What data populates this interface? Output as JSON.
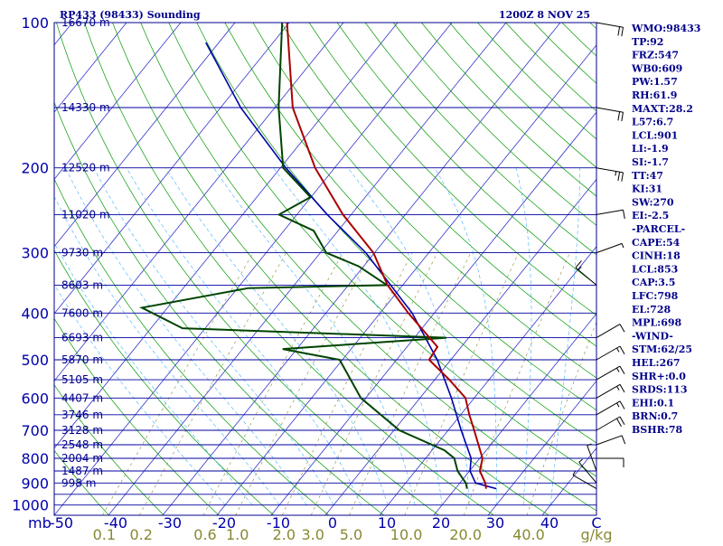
{
  "chart_data": {
    "type": "skew-t sounding",
    "title_left": "RP433 (98433) Sounding",
    "title_right": "1200Z  8 NOV 25",
    "pressure_axis": {
      "unit_label": "mb",
      "ticks": [
        100,
        200,
        300,
        400,
        500,
        600,
        700,
        800,
        900,
        1000
      ],
      "range": [
        100,
        1050
      ]
    },
    "temperature_axis": {
      "unit_label": "C",
      "ticks": [
        -50,
        -40,
        -30,
        -20,
        -10,
        0,
        10,
        20,
        30,
        40
      ],
      "range": [
        -50,
        50
      ]
    },
    "mixing_ratio_axis": {
      "unit_label": "g/kg",
      "ticks": [
        {
          "label": "0.1",
          "value": 0.1
        },
        {
          "label": "0.2",
          "value": 0.2
        },
        {
          "label": "0.6",
          "value": 0.6
        },
        {
          "label": "1.0",
          "value": 1.0
        },
        {
          "label": "2.0",
          "value": 2.0
        },
        {
          "label": "3.0",
          "value": 3.0
        },
        {
          "label": "5.0",
          "value": 5.0
        },
        {
          "label": "10.0",
          "value": 10.0
        },
        {
          "label": "20.0",
          "value": 20.0
        },
        {
          "label": "40.0",
          "value": 40.0
        }
      ]
    },
    "height_labels": [
      {
        "p": 100,
        "label": "16670 m"
      },
      {
        "p": 150,
        "label": "14330 m"
      },
      {
        "p": 200,
        "label": "12520 m"
      },
      {
        "p": 250,
        "label": "11020 m"
      },
      {
        "p": 300,
        "label": "9730 m"
      },
      {
        "p": 350,
        "label": "8603 m"
      },
      {
        "p": 400,
        "label": "7600 m"
      },
      {
        "p": 450,
        "label": "6693 m"
      },
      {
        "p": 500,
        "label": "5870 m"
      },
      {
        "p": 550,
        "label": "5105 m"
      },
      {
        "p": 600,
        "label": "4407 m"
      },
      {
        "p": 650,
        "label": "3746 m"
      },
      {
        "p": 700,
        "label": "3128 m"
      },
      {
        "p": 750,
        "label": "2548 m"
      },
      {
        "p": 800,
        "label": "2004 m"
      },
      {
        "p": 850,
        "label": "1487 m"
      },
      {
        "p": 900,
        "label": "998 m"
      }
    ],
    "isobars_extra": [
      950,
      1050
    ],
    "temperature_profile": [
      {
        "p": 925,
        "t": 25.7
      },
      {
        "p": 900,
        "t": 24.7
      },
      {
        "p": 850,
        "t": 21.9
      },
      {
        "p": 800,
        "t": 20.5
      },
      {
        "p": 700,
        "t": 14.8
      },
      {
        "p": 650,
        "t": 11.6
      },
      {
        "p": 600,
        "t": 8.4
      },
      {
        "p": 550,
        "t": 2.7
      },
      {
        "p": 500,
        "t": -4.0
      },
      {
        "p": 470,
        "t": -4.4
      },
      {
        "p": 400,
        "t": -14.8
      },
      {
        "p": 350,
        "t": -22.8
      },
      {
        "p": 300,
        "t": -30.2
      },
      {
        "p": 250,
        "t": -41.5
      },
      {
        "p": 200,
        "t": -53.6
      },
      {
        "p": 150,
        "t": -66.7
      },
      {
        "p": 100,
        "t": -80.4
      }
    ],
    "dewpoint_profile": [
      {
        "p": 925,
        "td": 22.2
      },
      {
        "p": 900,
        "td": 21.1
      },
      {
        "p": 850,
        "td": 17.8
      },
      {
        "p": 800,
        "td": 15.3
      },
      {
        "p": 770,
        "td": 12.3
      },
      {
        "p": 700,
        "td": 1.0
      },
      {
        "p": 600,
        "td": -10.9
      },
      {
        "p": 500,
        "td": -20.5
      },
      {
        "p": 475,
        "td": -32.6
      },
      {
        "p": 450,
        "td": -4.1
      },
      {
        "p": 430,
        "td": -54.2
      },
      {
        "p": 390,
        "td": -64.7
      },
      {
        "p": 355,
        "td": -48.0
      },
      {
        "p": 350,
        "td": -22.9
      },
      {
        "p": 320,
        "td": -30.9
      },
      {
        "p": 300,
        "td": -38.9
      },
      {
        "p": 270,
        "td": -44.5
      },
      {
        "p": 250,
        "td": -53.3
      },
      {
        "p": 230,
        "td": -50.1
      },
      {
        "p": 200,
        "td": -59.5
      },
      {
        "p": 150,
        "td": -69.3
      },
      {
        "p": 100,
        "td": -81.3
      }
    ],
    "parcel_profile": [
      {
        "p": 925,
        "t": 27.6
      },
      {
        "p": 900,
        "t": 22.9
      },
      {
        "p": 850,
        "t": 20.1
      },
      {
        "p": 800,
        "t": 18.4
      },
      {
        "p": 700,
        "t": 12.4
      },
      {
        "p": 600,
        "t": 5.8
      },
      {
        "p": 500,
        "t": -2.5
      },
      {
        "p": 400,
        "t": -14.1
      },
      {
        "p": 300,
        "t": -31.6
      },
      {
        "p": 250,
        "t": -44.4
      },
      {
        "p": 200,
        "t": -59.0
      },
      {
        "p": 150,
        "t": -76.3
      },
      {
        "p": 110,
        "t": -92.4
      }
    ],
    "wind_barbs": [
      {
        "p": 100,
        "dir": 100,
        "spd": 20
      },
      {
        "p": 150,
        "dir": 100,
        "spd": 20
      },
      {
        "p": 200,
        "dir": 100,
        "spd": 25
      },
      {
        "p": 250,
        "dir": 80,
        "spd": 10
      },
      {
        "p": 300,
        "dir": 70,
        "spd": 5
      },
      {
        "p": 350,
        "dir": 310,
        "spd": 15
      },
      {
        "p": 450,
        "dir": 60,
        "spd": 10
      },
      {
        "p": 500,
        "dir": 60,
        "spd": 15
      },
      {
        "p": 550,
        "dir": 60,
        "spd": 15
      },
      {
        "p": 600,
        "dir": 60,
        "spd": 15
      },
      {
        "p": 650,
        "dir": 60,
        "spd": 15
      },
      {
        "p": 700,
        "dir": 60,
        "spd": 20
      },
      {
        "p": 750,
        "dir": 70,
        "spd": 10
      },
      {
        "p": 800,
        "dir": 90,
        "spd": 10
      },
      {
        "p": 850,
        "dir": 340,
        "spd": 5
      },
      {
        "p": 900,
        "dir": 320,
        "spd": 5
      },
      {
        "p": 925,
        "dir": 300,
        "spd": 5
      }
    ],
    "indices": [
      "WMO:98433",
      "TP:92",
      "FRZ:547",
      "WB0:609",
      "PW:1.57",
      "RH:61.9",
      "MAXT:28.2",
      "L57:6.7",
      "LCL:901",
      "LI:-1.9",
      "SI:-1.7",
      "TT:47",
      "KI:31",
      "SW:270",
      "EI:-2.5",
      "-PARCEL-",
      "CAPE:54",
      "CINH:18",
      "LCL:853",
      "CAP:3.5",
      "LFC:798",
      "EL:728",
      "MPL:698",
      "-WIND-",
      "STM:62/25",
      "HEL:267",
      "SHR+:0.0",
      "SRDS:113",
      "EHI:0.1",
      "BRN:0.7",
      "BSHR:78"
    ]
  },
  "colors": {
    "frame": "#00008B",
    "isobar": "#0000A0",
    "isotherm": "#3333CC",
    "dry_adiabat": "#009900",
    "moist_adiabat": "#55BBFF",
    "mixing_ratio": "#888833",
    "temperature": "#AA0000",
    "dewpoint": "#004400",
    "parcel": "#0000AA",
    "axis_text": "#0000AA",
    "mr_text": "#888833",
    "index_text": "#00008B"
  }
}
